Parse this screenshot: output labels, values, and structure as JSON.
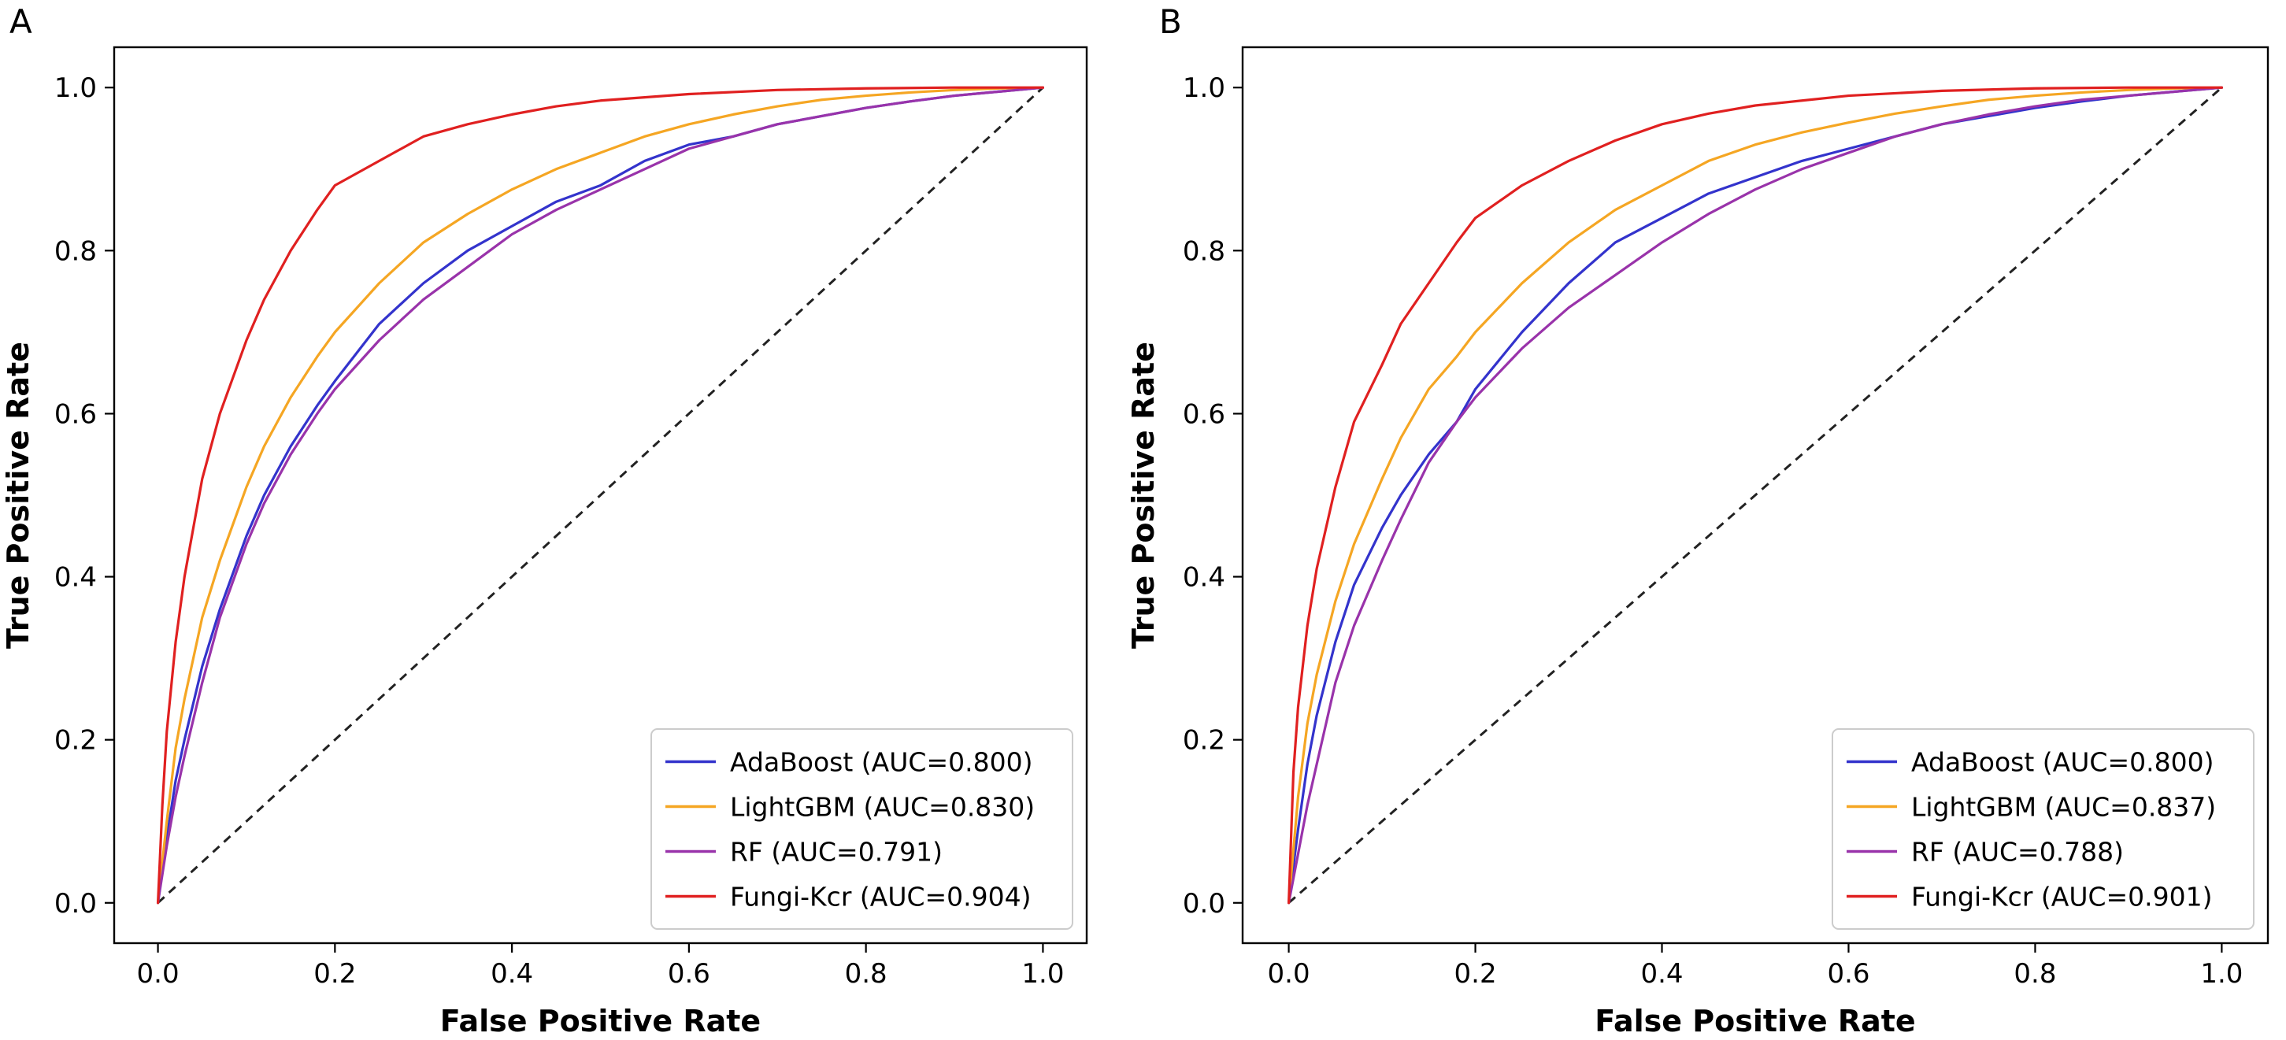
{
  "figure": {
    "type": "roc-comparison",
    "title": "",
    "description_visible": ""
  },
  "chart_data": [
    {
      "type": "line",
      "panel_label": "A",
      "title": "",
      "xlabel": "False Positive Rate",
      "ylabel": "True Positive Rate",
      "xlim": [
        0.0,
        1.0
      ],
      "ylim": [
        0.0,
        1.0
      ],
      "xticks": [
        "0.0",
        "0.2",
        "0.4",
        "0.6",
        "0.8",
        "1.0"
      ],
      "yticks": [
        "0.0",
        "0.2",
        "0.4",
        "0.6",
        "0.8",
        "1.0"
      ],
      "grid": false,
      "legend": {
        "placement": "bottom-right"
      },
      "diagonal": {
        "x": [
          0,
          1
        ],
        "y": [
          0,
          1
        ],
        "style": "dashed",
        "color": "#222222"
      },
      "series": [
        {
          "name": "AdaBoost (AUC=0.800)",
          "color": "#3333cc",
          "x": [
            0,
            0.01,
            0.02,
            0.03,
            0.05,
            0.07,
            0.1,
            0.12,
            0.15,
            0.18,
            0.2,
            0.25,
            0.3,
            0.35,
            0.4,
            0.45,
            0.5,
            0.55,
            0.6,
            0.65,
            0.7,
            0.75,
            0.8,
            0.85,
            0.9,
            0.95,
            1.0
          ],
          "y": [
            0,
            0.08,
            0.15,
            0.2,
            0.29,
            0.36,
            0.45,
            0.5,
            0.56,
            0.61,
            0.64,
            0.71,
            0.76,
            0.8,
            0.83,
            0.86,
            0.88,
            0.91,
            0.93,
            0.94,
            0.955,
            0.965,
            0.975,
            0.983,
            0.99,
            0.995,
            1.0
          ]
        },
        {
          "name": "LightGBM (AUC=0.830)",
          "color": "#f5a623",
          "x": [
            0,
            0.01,
            0.02,
            0.03,
            0.05,
            0.07,
            0.1,
            0.12,
            0.15,
            0.18,
            0.2,
            0.25,
            0.3,
            0.35,
            0.4,
            0.45,
            0.5,
            0.55,
            0.6,
            0.65,
            0.7,
            0.75,
            0.8,
            0.85,
            0.9,
            0.95,
            1.0
          ],
          "y": [
            0,
            0.1,
            0.19,
            0.25,
            0.35,
            0.42,
            0.51,
            0.56,
            0.62,
            0.67,
            0.7,
            0.76,
            0.81,
            0.845,
            0.875,
            0.9,
            0.92,
            0.94,
            0.955,
            0.967,
            0.977,
            0.985,
            0.99,
            0.994,
            0.997,
            0.999,
            1.0
          ]
        },
        {
          "name": "RF (AUC=0.791)",
          "color": "#9933aa",
          "x": [
            0,
            0.01,
            0.02,
            0.03,
            0.05,
            0.07,
            0.1,
            0.12,
            0.15,
            0.18,
            0.2,
            0.25,
            0.3,
            0.35,
            0.4,
            0.45,
            0.5,
            0.55,
            0.6,
            0.65,
            0.7,
            0.75,
            0.8,
            0.85,
            0.9,
            0.95,
            1.0
          ],
          "y": [
            0,
            0.07,
            0.13,
            0.18,
            0.27,
            0.35,
            0.44,
            0.49,
            0.55,
            0.6,
            0.63,
            0.69,
            0.74,
            0.78,
            0.82,
            0.85,
            0.875,
            0.9,
            0.925,
            0.94,
            0.955,
            0.965,
            0.975,
            0.983,
            0.99,
            0.995,
            1.0
          ]
        },
        {
          "name": "Fungi-Kcr (AUC=0.904)",
          "color": "#e02020",
          "x": [
            0,
            0.005,
            0.01,
            0.02,
            0.03,
            0.05,
            0.07,
            0.1,
            0.12,
            0.15,
            0.18,
            0.2,
            0.25,
            0.3,
            0.35,
            0.4,
            0.45,
            0.5,
            0.6,
            0.7,
            0.8,
            0.9,
            1.0
          ],
          "y": [
            0,
            0.12,
            0.21,
            0.32,
            0.4,
            0.52,
            0.6,
            0.69,
            0.74,
            0.8,
            0.85,
            0.88,
            0.91,
            0.94,
            0.955,
            0.967,
            0.977,
            0.984,
            0.992,
            0.997,
            0.999,
            1.0,
            1.0
          ]
        }
      ]
    },
    {
      "type": "line",
      "panel_label": "B",
      "title": "",
      "xlabel": "False Positive Rate",
      "ylabel": "True Positive Rate",
      "xlim": [
        0.0,
        1.0
      ],
      "ylim": [
        0.0,
        1.0
      ],
      "xticks": [
        "0.0",
        "0.2",
        "0.4",
        "0.6",
        "0.8",
        "1.0"
      ],
      "yticks": [
        "0.0",
        "0.2",
        "0.4",
        "0.6",
        "0.8",
        "1.0"
      ],
      "grid": false,
      "legend": {
        "placement": "bottom-right"
      },
      "diagonal": {
        "x": [
          0,
          1
        ],
        "y": [
          0,
          1
        ],
        "style": "dashed",
        "color": "#222222"
      },
      "series": [
        {
          "name": "AdaBoost (AUC=0.800)",
          "color": "#3333cc",
          "x": [
            0,
            0.01,
            0.02,
            0.03,
            0.05,
            0.07,
            0.1,
            0.12,
            0.15,
            0.18,
            0.2,
            0.25,
            0.3,
            0.35,
            0.4,
            0.45,
            0.5,
            0.55,
            0.6,
            0.65,
            0.7,
            0.75,
            0.8,
            0.85,
            0.9,
            0.95,
            1.0
          ],
          "y": [
            0,
            0.09,
            0.17,
            0.23,
            0.32,
            0.39,
            0.46,
            0.5,
            0.55,
            0.59,
            0.63,
            0.7,
            0.76,
            0.81,
            0.84,
            0.87,
            0.89,
            0.91,
            0.925,
            0.94,
            0.955,
            0.965,
            0.975,
            0.983,
            0.99,
            0.995,
            1.0
          ]
        },
        {
          "name": "LightGBM (AUC=0.837)",
          "color": "#f5a623",
          "x": [
            0,
            0.01,
            0.02,
            0.03,
            0.05,
            0.07,
            0.1,
            0.12,
            0.15,
            0.18,
            0.2,
            0.25,
            0.3,
            0.35,
            0.4,
            0.45,
            0.5,
            0.55,
            0.6,
            0.65,
            0.7,
            0.75,
            0.8,
            0.85,
            0.9,
            0.95,
            1.0
          ],
          "y": [
            0,
            0.13,
            0.22,
            0.28,
            0.37,
            0.44,
            0.52,
            0.57,
            0.63,
            0.67,
            0.7,
            0.76,
            0.81,
            0.85,
            0.88,
            0.91,
            0.93,
            0.945,
            0.957,
            0.968,
            0.977,
            0.985,
            0.99,
            0.994,
            0.997,
            0.999,
            1.0
          ]
        },
        {
          "name": "RF (AUC=0.788)",
          "color": "#9933aa",
          "x": [
            0,
            0.01,
            0.02,
            0.03,
            0.05,
            0.07,
            0.1,
            0.12,
            0.15,
            0.18,
            0.2,
            0.25,
            0.3,
            0.35,
            0.4,
            0.45,
            0.5,
            0.55,
            0.6,
            0.65,
            0.7,
            0.75,
            0.8,
            0.85,
            0.9,
            0.95,
            1.0
          ],
          "y": [
            0,
            0.06,
            0.12,
            0.17,
            0.27,
            0.34,
            0.42,
            0.47,
            0.54,
            0.59,
            0.62,
            0.68,
            0.73,
            0.77,
            0.81,
            0.845,
            0.875,
            0.9,
            0.92,
            0.94,
            0.955,
            0.967,
            0.977,
            0.985,
            0.99,
            0.995,
            1.0
          ]
        },
        {
          "name": "Fungi-Kcr (AUC=0.901)",
          "color": "#e02020",
          "x": [
            0,
            0.005,
            0.01,
            0.02,
            0.03,
            0.05,
            0.07,
            0.1,
            0.12,
            0.15,
            0.18,
            0.2,
            0.25,
            0.3,
            0.35,
            0.4,
            0.45,
            0.5,
            0.6,
            0.7,
            0.8,
            0.9,
            1.0
          ],
          "y": [
            0,
            0.16,
            0.24,
            0.34,
            0.41,
            0.51,
            0.59,
            0.66,
            0.71,
            0.76,
            0.81,
            0.84,
            0.88,
            0.91,
            0.935,
            0.955,
            0.968,
            0.978,
            0.99,
            0.996,
            0.999,
            1.0,
            1.0
          ]
        }
      ]
    }
  ]
}
